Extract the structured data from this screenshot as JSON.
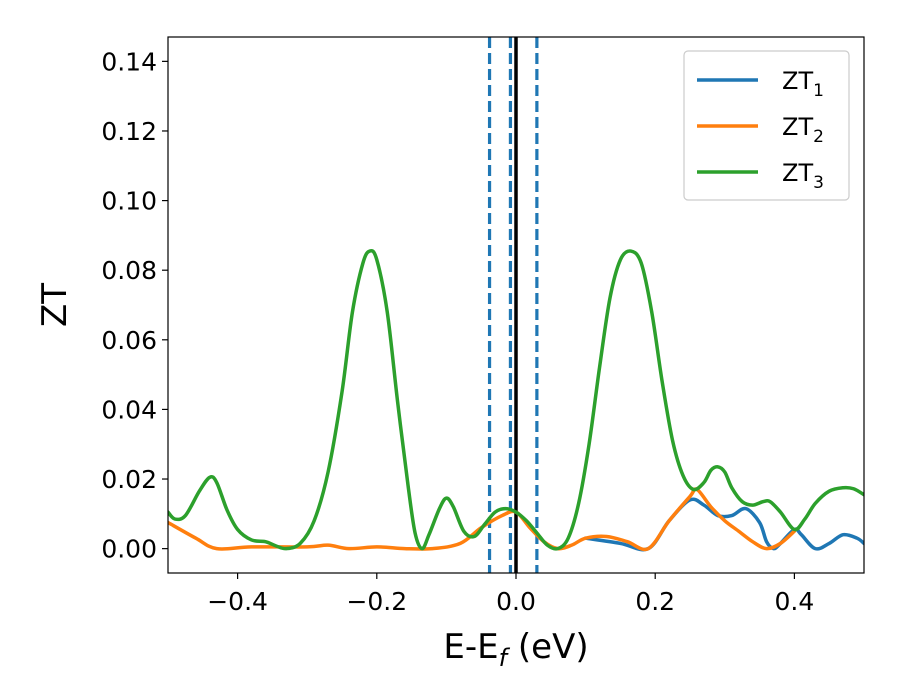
{
  "chart_data": {
    "type": "line",
    "title": "",
    "xlabel": "E-E",
    "xlabel_sub": "f",
    "xlabel_suffix": " (eV)",
    "ylabel": "ZT",
    "xlim": [
      -0.5,
      0.5
    ],
    "ylim": [
      -0.007,
      0.147
    ],
    "xticks": [
      -0.4,
      -0.2,
      0.0,
      0.2,
      0.4
    ],
    "xtick_labels": [
      "−0.4",
      "−0.2",
      "0.0",
      "0.2",
      "0.4"
    ],
    "yticks": [
      0.0,
      0.02,
      0.04,
      0.06,
      0.08,
      0.1,
      0.12,
      0.14
    ],
    "ytick_labels": [
      "0.00",
      "0.02",
      "0.04",
      "0.06",
      "0.08",
      "0.10",
      "0.12",
      "0.14"
    ],
    "grid": false,
    "legend_position": "top-right",
    "vlines": [
      {
        "x": 0.0,
        "color": "#000000",
        "style": "solid"
      },
      {
        "x": -0.038,
        "color": "#1f77b4",
        "style": "dashed"
      },
      {
        "x": -0.008,
        "color": "#1f77b4",
        "style": "dashed"
      },
      {
        "x": 0.03,
        "color": "#1f77b4",
        "style": "dashed"
      }
    ],
    "series": [
      {
        "name": "ZT",
        "name_sub": "1",
        "color": "#1f77b4",
        "points": [
          [
            0.1,
            0.003
          ],
          [
            0.15,
            0.0015
          ],
          [
            0.19,
            0.0
          ],
          [
            0.22,
            0.008
          ],
          [
            0.25,
            0.014
          ],
          [
            0.27,
            0.0125
          ],
          [
            0.29,
            0.0095
          ],
          [
            0.31,
            0.0095
          ],
          [
            0.33,
            0.0115
          ],
          [
            0.35,
            0.0075
          ],
          [
            0.36,
            0.002
          ],
          [
            0.37,
            0.0
          ],
          [
            0.38,
            0.0015
          ],
          [
            0.4,
            0.0055
          ],
          [
            0.41,
            0.004
          ],
          [
            0.43,
            0.0
          ],
          [
            0.45,
            0.0015
          ],
          [
            0.47,
            0.004
          ],
          [
            0.49,
            0.003
          ],
          [
            0.5,
            0.0015
          ]
        ]
      },
      {
        "name": "ZT",
        "name_sub": "2",
        "color": "#ff7f0e",
        "points": [
          [
            -0.5,
            0.0075
          ],
          [
            -0.46,
            0.003
          ],
          [
            -0.43,
            0.0
          ],
          [
            -0.38,
            0.0005
          ],
          [
            -0.3,
            0.0005
          ],
          [
            -0.27,
            0.001
          ],
          [
            -0.24,
            0.0
          ],
          [
            -0.2,
            0.0005
          ],
          [
            -0.16,
            0.0
          ],
          [
            -0.12,
            0.0
          ],
          [
            -0.08,
            0.0015
          ],
          [
            -0.05,
            0.006
          ],
          [
            -0.02,
            0.0095
          ],
          [
            0.0,
            0.0105
          ],
          [
            0.02,
            0.006
          ],
          [
            0.04,
            0.002
          ],
          [
            0.06,
            0.0
          ],
          [
            0.08,
            0.001
          ],
          [
            0.1,
            0.003
          ],
          [
            0.13,
            0.0035
          ],
          [
            0.16,
            0.002
          ],
          [
            0.19,
            0.0
          ],
          [
            0.22,
            0.008
          ],
          [
            0.25,
            0.015
          ],
          [
            0.26,
            0.017
          ],
          [
            0.28,
            0.012
          ],
          [
            0.3,
            0.008
          ],
          [
            0.32,
            0.005
          ],
          [
            0.34,
            0.002
          ],
          [
            0.36,
            0.0
          ],
          [
            0.38,
            0.0015
          ],
          [
            0.4,
            0.005
          ]
        ]
      },
      {
        "name": "ZT",
        "name_sub": "3",
        "color": "#2ca02c",
        "points": [
          [
            -0.5,
            0.0105
          ],
          [
            -0.49,
            0.0085
          ],
          [
            -0.475,
            0.0095
          ],
          [
            -0.455,
            0.0165
          ],
          [
            -0.44,
            0.0205
          ],
          [
            -0.43,
            0.019
          ],
          [
            -0.415,
            0.011
          ],
          [
            -0.4,
            0.0055
          ],
          [
            -0.38,
            0.0025
          ],
          [
            -0.36,
            0.002
          ],
          [
            -0.345,
            0.0008
          ],
          [
            -0.33,
            0.0
          ],
          [
            -0.31,
            0.0015
          ],
          [
            -0.29,
            0.008
          ],
          [
            -0.27,
            0.022
          ],
          [
            -0.25,
            0.045
          ],
          [
            -0.235,
            0.068
          ],
          [
            -0.22,
            0.082
          ],
          [
            -0.21,
            0.0855
          ],
          [
            -0.2,
            0.083
          ],
          [
            -0.185,
            0.068
          ],
          [
            -0.17,
            0.042
          ],
          [
            -0.155,
            0.018
          ],
          [
            -0.145,
            0.0045
          ],
          [
            -0.135,
            0.0
          ],
          [
            -0.125,
            0.004
          ],
          [
            -0.11,
            0.0115
          ],
          [
            -0.1,
            0.0145
          ],
          [
            -0.09,
            0.012
          ],
          [
            -0.075,
            0.005
          ],
          [
            -0.06,
            0.0035
          ],
          [
            -0.045,
            0.007
          ],
          [
            -0.03,
            0.0105
          ],
          [
            -0.015,
            0.0115
          ],
          [
            0.0,
            0.0105
          ],
          [
            0.015,
            0.008
          ],
          [
            0.03,
            0.0045
          ],
          [
            0.045,
            0.001
          ],
          [
            0.06,
            0.0
          ],
          [
            0.075,
            0.003
          ],
          [
            0.09,
            0.013
          ],
          [
            0.105,
            0.03
          ],
          [
            0.12,
            0.052
          ],
          [
            0.135,
            0.072
          ],
          [
            0.15,
            0.083
          ],
          [
            0.165,
            0.0855
          ],
          [
            0.18,
            0.082
          ],
          [
            0.195,
            0.068
          ],
          [
            0.21,
            0.048
          ],
          [
            0.225,
            0.031
          ],
          [
            0.24,
            0.021
          ],
          [
            0.255,
            0.017
          ],
          [
            0.27,
            0.019
          ],
          [
            0.28,
            0.0225
          ],
          [
            0.29,
            0.0235
          ],
          [
            0.3,
            0.022
          ],
          [
            0.31,
            0.0175
          ],
          [
            0.325,
            0.0135
          ],
          [
            0.34,
            0.0125
          ],
          [
            0.355,
            0.0135
          ],
          [
            0.365,
            0.0135
          ],
          [
            0.38,
            0.0105
          ],
          [
            0.4,
            0.0055
          ],
          [
            0.415,
            0.0085
          ],
          [
            0.43,
            0.013
          ],
          [
            0.45,
            0.0165
          ],
          [
            0.47,
            0.0175
          ],
          [
            0.485,
            0.0172
          ],
          [
            0.5,
            0.0155
          ]
        ]
      }
    ]
  }
}
